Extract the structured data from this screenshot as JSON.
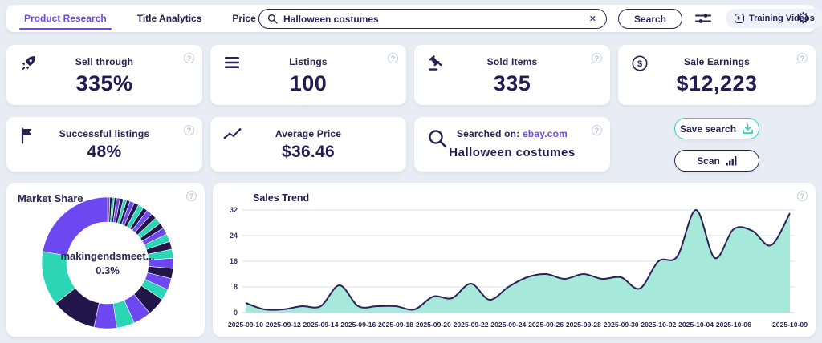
{
  "topbar": {
    "tabs": [
      {
        "label": "Product Research"
      },
      {
        "label": "Title Analytics"
      },
      {
        "label": "Price Analytics"
      }
    ],
    "search_value": "Halloween costumes",
    "search_button": "Search",
    "training_videos": "Training Videos"
  },
  "icons": {
    "gear": "⚙",
    "clear": "✕",
    "play": "▶",
    "help": "?"
  },
  "cards": [
    {
      "icon": "rocket-icon",
      "title": "Sell through",
      "value": "335%"
    },
    {
      "icon": "list-icon",
      "title": "Listings",
      "value": "100"
    },
    {
      "icon": "gavel-icon",
      "title": "Sold Items",
      "value": "335"
    },
    {
      "icon": "dollar-icon",
      "title": "Sale Earnings",
      "value": "$12,223"
    },
    {
      "icon": "flag-icon",
      "title": "Successful listings",
      "value": "48%"
    },
    {
      "icon": "trend-icon",
      "title": "Average Price",
      "value": "$36.46"
    },
    {
      "icon": "magnifier-icon",
      "title_prefix": "Searched on:",
      "title_link": "ebay.com",
      "value": "Halloween costumes"
    }
  ],
  "actions": {
    "save_search": "Save search",
    "scan": "Scan"
  },
  "colors": {
    "accent_purple": "#6d48f0",
    "teal": "#2cd5b6",
    "navy": "#262253",
    "donut_dark": "#221549",
    "area_fill": "#a6e9da"
  },
  "chart_data": [
    {
      "type": "pie",
      "donut": true,
      "title": "Market Share",
      "center_label": "makingendsmeet...",
      "center_value": "0.3%",
      "slices": [
        {
          "v": 2,
          "c": "#6d48f0"
        },
        {
          "v": 2,
          "c": "#221549"
        },
        {
          "v": 2,
          "c": "#2cd5b6"
        },
        {
          "v": 2,
          "c": "#221549"
        },
        {
          "v": 3,
          "c": "#6d48f0"
        },
        {
          "v": 3,
          "c": "#221549"
        },
        {
          "v": 3,
          "c": "#2cd5b6"
        },
        {
          "v": 3,
          "c": "#221549"
        },
        {
          "v": 4,
          "c": "#6d48f0"
        },
        {
          "v": 4,
          "c": "#221549"
        },
        {
          "v": 5,
          "c": "#2cd5b6"
        },
        {
          "v": 4,
          "c": "#221549"
        },
        {
          "v": 5,
          "c": "#6d48f0"
        },
        {
          "v": 5,
          "c": "#221549"
        },
        {
          "v": 6,
          "c": "#2cd5b6"
        },
        {
          "v": 5,
          "c": "#221549"
        },
        {
          "v": 6,
          "c": "#6d48f0"
        },
        {
          "v": 7,
          "c": "#2cd5b6"
        },
        {
          "v": 7,
          "c": "#221549"
        },
        {
          "v": 8,
          "c": "#2cd5b6"
        },
        {
          "v": 9,
          "c": "#6d48f0"
        },
        {
          "v": 9,
          "c": "#221549"
        },
        {
          "v": 10,
          "c": "#6d48f0"
        },
        {
          "v": 10,
          "c": "#2cd5b6"
        },
        {
          "v": 16,
          "c": "#221549"
        },
        {
          "v": 16,
          "c": "#6d48f0"
        },
        {
          "v": 16,
          "c": "#2cd5b6"
        },
        {
          "v": 20,
          "c": "#6d48f0"
        },
        {
          "v": 40,
          "c": "#221549"
        },
        {
          "v": 48,
          "c": "#2cd5b6"
        },
        {
          "v": 80,
          "c": "#6d48f0"
        }
      ]
    },
    {
      "type": "area",
      "title": "Sales Trend",
      "x": [
        "2025-09-10",
        "2025-09-11",
        "2025-09-12",
        "2025-09-13",
        "2025-09-14",
        "2025-09-15",
        "2025-09-16",
        "2025-09-17",
        "2025-09-18",
        "2025-09-19",
        "2025-09-20",
        "2025-09-21",
        "2025-09-22",
        "2025-09-23",
        "2025-09-24",
        "2025-09-25",
        "2025-09-26",
        "2025-09-27",
        "2025-09-28",
        "2025-09-29",
        "2025-09-30",
        "2025-10-01",
        "2025-10-02",
        "2025-10-03",
        "2025-10-04",
        "2025-10-05",
        "2025-10-06",
        "2025-10-07",
        "2025-10-08",
        "2025-10-09"
      ],
      "values": [
        3,
        1,
        1,
        2,
        2,
        8.5,
        2,
        2,
        2,
        1,
        5,
        4.5,
        9,
        4,
        8,
        11,
        12,
        10.5,
        12,
        10.5,
        11,
        7.5,
        16,
        17.5,
        32,
        17,
        26,
        25.5,
        21,
        31
      ],
      "ylim": [
        0,
        32
      ],
      "yticks": [
        0,
        8,
        16,
        24,
        32
      ],
      "xtick_labels": [
        "2025-09-10",
        "2025-09-12",
        "2025-09-14",
        "2025-09-16",
        "2025-09-18",
        "2025-09-20",
        "2025-09-22",
        "2025-09-24",
        "2025-09-26",
        "2025-09-28",
        "2025-09-30",
        "2025-10-02",
        "2025-10-04",
        "2025-10-06",
        "2025-10-09"
      ],
      "grid": true,
      "fill": "#a6e9da",
      "line": "#2b2357"
    }
  ]
}
